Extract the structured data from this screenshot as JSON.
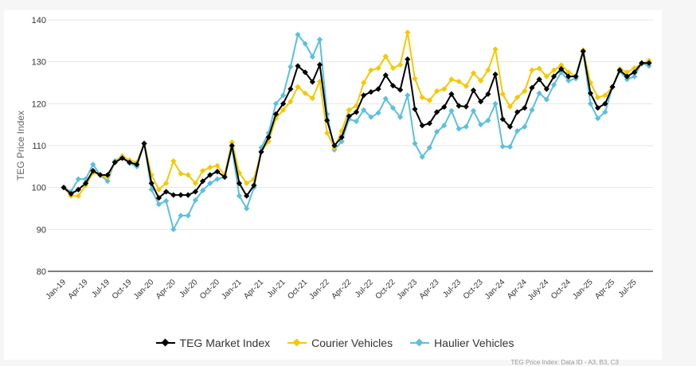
{
  "chart_data": {
    "type": "line",
    "title": "",
    "xlabel": "",
    "ylabel": "TEG Price Index",
    "ylim": [
      80,
      140
    ],
    "yticks": [
      80,
      90,
      100,
      110,
      120,
      130,
      140
    ],
    "grid": true,
    "legend_position": "bottom",
    "x_tick_labels": [
      "Jan-19",
      "Apr-19",
      "Jul-19",
      "Oct-19",
      "Jan-20",
      "Apr-20",
      "Jul-20",
      "Oct-20",
      "Jan-21",
      "Apr-21",
      "Jul-21",
      "Oct-21",
      "Jan-22",
      "Apr-22",
      "Jul-22",
      "Oct-22",
      "Jan-23",
      "Apr-23",
      "Jul-23",
      "Oct-23",
      "Jan-24",
      "Apr-24",
      "July-24",
      "Oct-24",
      "Jan-25",
      "Apr-25",
      "Jul-25"
    ],
    "x_tick_every_months": 3,
    "x": [
      "Jan-19",
      "Feb-19",
      "Mar-19",
      "Apr-19",
      "May-19",
      "Jun-19",
      "Jul-19",
      "Aug-19",
      "Sep-19",
      "Oct-19",
      "Nov-19",
      "Dec-19",
      "Jan-20",
      "Feb-20",
      "Mar-20",
      "Apr-20",
      "May-20",
      "Jun-20",
      "Jul-20",
      "Aug-20",
      "Sep-20",
      "Oct-20",
      "Nov-20",
      "Dec-20",
      "Jan-21",
      "Feb-21",
      "Mar-21",
      "Apr-21",
      "May-21",
      "Jun-21",
      "Jul-21",
      "Aug-21",
      "Sep-21",
      "Oct-21",
      "Nov-21",
      "Dec-21",
      "Jan-22",
      "Feb-22",
      "Mar-22",
      "Apr-22",
      "May-22",
      "Jun-22",
      "Jul-22",
      "Aug-22",
      "Sep-22",
      "Oct-22",
      "Nov-22",
      "Dec-22",
      "Jan-23",
      "Feb-23",
      "Mar-23",
      "Apr-23",
      "May-23",
      "Jun-23",
      "Jul-23",
      "Aug-23",
      "Sep-23",
      "Oct-23",
      "Nov-23",
      "Dec-23",
      "Jan-24",
      "Feb-24",
      "Mar-24",
      "Apr-24",
      "May-24",
      "Jun-24",
      "Jul-24",
      "Aug-24",
      "Sep-24",
      "Oct-24",
      "Nov-24",
      "Dec-24",
      "Jan-25",
      "Feb-25",
      "Mar-25",
      "Apr-25",
      "May-25",
      "Jun-25",
      "Jul-25",
      "Aug-25",
      "Sep-25"
    ],
    "series": [
      {
        "name": "TEG Market Index",
        "color": "#000000",
        "values": [
          100,
          98.5,
          99.5,
          101,
          104,
          103,
          103,
          106,
          107,
          106,
          105.5,
          110.5,
          101,
          97.5,
          99,
          98.2,
          98.2,
          98.2,
          99,
          101.5,
          103,
          103.8,
          102.5,
          110,
          101,
          98,
          100.5,
          108.5,
          112,
          117.5,
          120,
          123.5,
          129,
          127.5,
          125.2,
          129.3,
          116,
          110,
          112,
          117,
          118,
          122,
          122.8,
          123.5,
          126.8,
          124.3,
          123.3,
          130.6,
          118.7,
          114.8,
          115.3,
          118,
          119.2,
          122.3,
          119.5,
          119.3,
          123.2,
          120.5,
          122.3,
          127,
          116.3,
          114.5,
          118,
          119,
          123.8,
          125.8,
          123.5,
          126.5,
          128.3,
          126.5,
          126.5,
          132.5,
          122.5,
          119,
          120,
          124,
          128,
          126.5,
          127.5,
          129.7,
          129.7
        ]
      },
      {
        "name": "Courier Vehicles",
        "color": "#f5c800",
        "values": [
          100,
          98,
          98,
          100.5,
          103.5,
          103,
          102.5,
          106,
          107.5,
          106.5,
          106,
          110.5,
          103,
          99.5,
          101,
          106.3,
          103.3,
          103,
          101,
          104,
          104.8,
          105.2,
          103,
          110.8,
          103.5,
          101,
          102,
          108.5,
          111,
          116.5,
          118.5,
          120.5,
          124,
          122.5,
          121.3,
          125.3,
          113,
          109.5,
          113.5,
          118.5,
          119.5,
          125,
          128,
          128.5,
          131.3,
          128.5,
          129.3,
          137,
          126,
          121.5,
          120.8,
          123,
          123.5,
          125.8,
          125.3,
          124.2,
          127.3,
          125.5,
          128,
          133,
          122.3,
          119.3,
          121.5,
          123,
          128,
          128.4,
          126.5,
          128,
          129.2,
          127.5,
          126.5,
          132.8,
          125,
          121.5,
          122,
          124,
          128.3,
          127.5,
          128.5,
          129.5,
          130.3
        ]
      },
      {
        "name": "Haulier Vehicles",
        "color": "#5bc0de",
        "values": [
          100,
          99,
          102,
          102,
          105.5,
          103,
          101.5,
          106.3,
          107.5,
          105.8,
          105,
          110.5,
          99.5,
          96,
          96.8,
          90,
          93.3,
          93.3,
          97,
          99.3,
          101,
          102,
          102.5,
          109.5,
          98,
          95,
          100,
          109.5,
          113,
          120,
          122,
          128.8,
          136.5,
          134.3,
          131.2,
          135.3,
          117.5,
          109,
          111,
          116.3,
          115.8,
          118.5,
          116.8,
          117.8,
          121.2,
          119,
          116.8,
          122,
          110.5,
          107.3,
          109.5,
          113.3,
          114.8,
          118.3,
          114,
          114.5,
          118.3,
          115,
          116,
          120,
          109.8,
          109.7,
          113.5,
          114.5,
          118.5,
          122.5,
          121,
          124.5,
          127.5,
          125.5,
          126,
          132.5,
          120,
          116.5,
          118,
          124,
          127.8,
          125.8,
          126.5,
          129.7,
          129
        ]
      }
    ]
  },
  "legend": {
    "items": [
      {
        "label": "TEG Market Index",
        "color": "#000000"
      },
      {
        "label": "Courier Vehicles",
        "color": "#f5c800"
      },
      {
        "label": "Haulier Vehicles",
        "color": "#5bc0de"
      }
    ]
  },
  "source_note": "TEG Price Index: Data ID - A3, B3, C3"
}
